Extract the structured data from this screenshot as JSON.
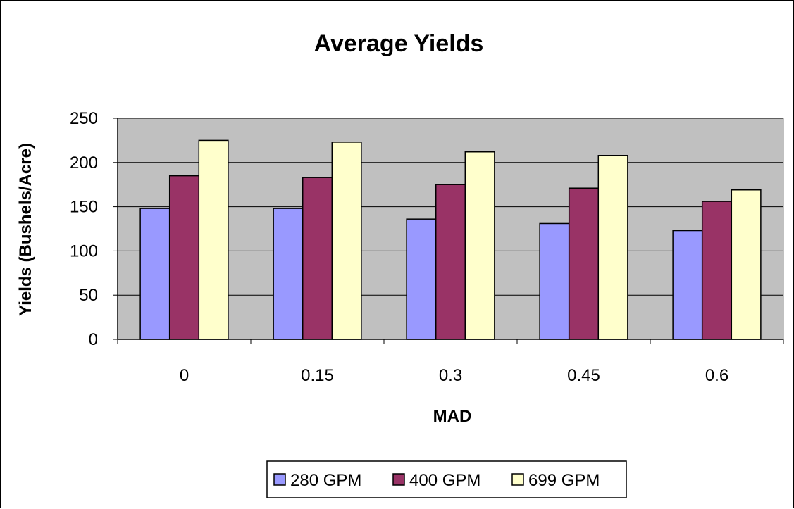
{
  "chart_data": {
    "type": "bar",
    "title": "Average Yields",
    "xlabel": "MAD",
    "ylabel": "Yields (Bushels/Acre)",
    "categories": [
      "0",
      "0.15",
      "0.3",
      "0.45",
      "0.6"
    ],
    "ylim": [
      0,
      250
    ],
    "yticks": [
      0,
      50,
      100,
      150,
      200,
      250
    ],
    "grid": true,
    "legend_position": "bottom",
    "plot_background": "#c0c0c0",
    "series": [
      {
        "name": "280 GPM",
        "color": "#9999ff",
        "values": [
          148,
          148,
          136,
          131,
          123
        ]
      },
      {
        "name": "400 GPM",
        "color": "#993366",
        "values": [
          185,
          183,
          175,
          171,
          156
        ]
      },
      {
        "name": "699 GPM",
        "color": "#ffffcc",
        "values": [
          225,
          223,
          212,
          208,
          169
        ]
      }
    ]
  }
}
